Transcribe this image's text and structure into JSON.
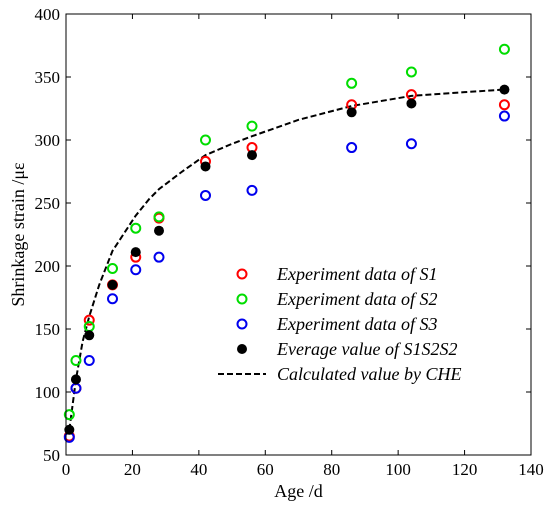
{
  "chart_data": {
    "type": "scatter",
    "xlabel": "Age /d",
    "ylabel": "Shrinkage strain /με",
    "xlim": [
      0,
      140
    ],
    "ylim": [
      50,
      400
    ],
    "xticks": [
      0,
      20,
      40,
      60,
      80,
      100,
      120,
      140
    ],
    "yticks": [
      50,
      100,
      150,
      200,
      250,
      300,
      350,
      400
    ],
    "grid": false,
    "legend_position": "bottom-right",
    "series": [
      {
        "name": "Experiment data of S1",
        "marker": "open-circle",
        "color": "#ff0000",
        "x": [
          1,
          3,
          7,
          14,
          21,
          28,
          42,
          56,
          86,
          104,
          132
        ],
        "y": [
          65,
          103,
          157,
          185,
          207,
          238,
          283,
          294,
          328,
          336,
          328
        ]
      },
      {
        "name": "Experiment data of S2",
        "marker": "open-circle",
        "color": "#00dd00",
        "x": [
          1,
          3,
          7,
          14,
          21,
          28,
          42,
          56,
          86,
          104,
          132
        ],
        "y": [
          82,
          125,
          152,
          198,
          230,
          239,
          300,
          311,
          345,
          354,
          372
        ]
      },
      {
        "name": "Experiment data of S3",
        "marker": "open-circle",
        "color": "#0000ee",
        "x": [
          1,
          3,
          7,
          14,
          21,
          28,
          42,
          56,
          86,
          104,
          132
        ],
        "y": [
          64,
          103,
          125,
          174,
          197,
          207,
          256,
          260,
          294,
          297,
          319
        ]
      },
      {
        "name": "Everage value of S1S2S2",
        "marker": "filled-circle",
        "color": "#000000",
        "x": [
          1,
          3,
          7,
          14,
          21,
          28,
          42,
          56,
          86,
          104,
          132
        ],
        "y": [
          70,
          110,
          145,
          185,
          211,
          228,
          279,
          288,
          322,
          329,
          340
        ]
      },
      {
        "name": "Calculated value by CHE",
        "marker": "dashed-line",
        "color": "#000000",
        "x": [
          1,
          3,
          5,
          7,
          10,
          14,
          18,
          21,
          25,
          28,
          35,
          42,
          50,
          56,
          70,
          86,
          104,
          120,
          132
        ],
        "y": [
          70,
          110,
          140,
          160,
          185,
          212,
          228,
          240,
          253,
          261,
          275,
          288,
          297,
          303,
          316,
          327,
          335,
          338,
          340
        ]
      }
    ]
  }
}
